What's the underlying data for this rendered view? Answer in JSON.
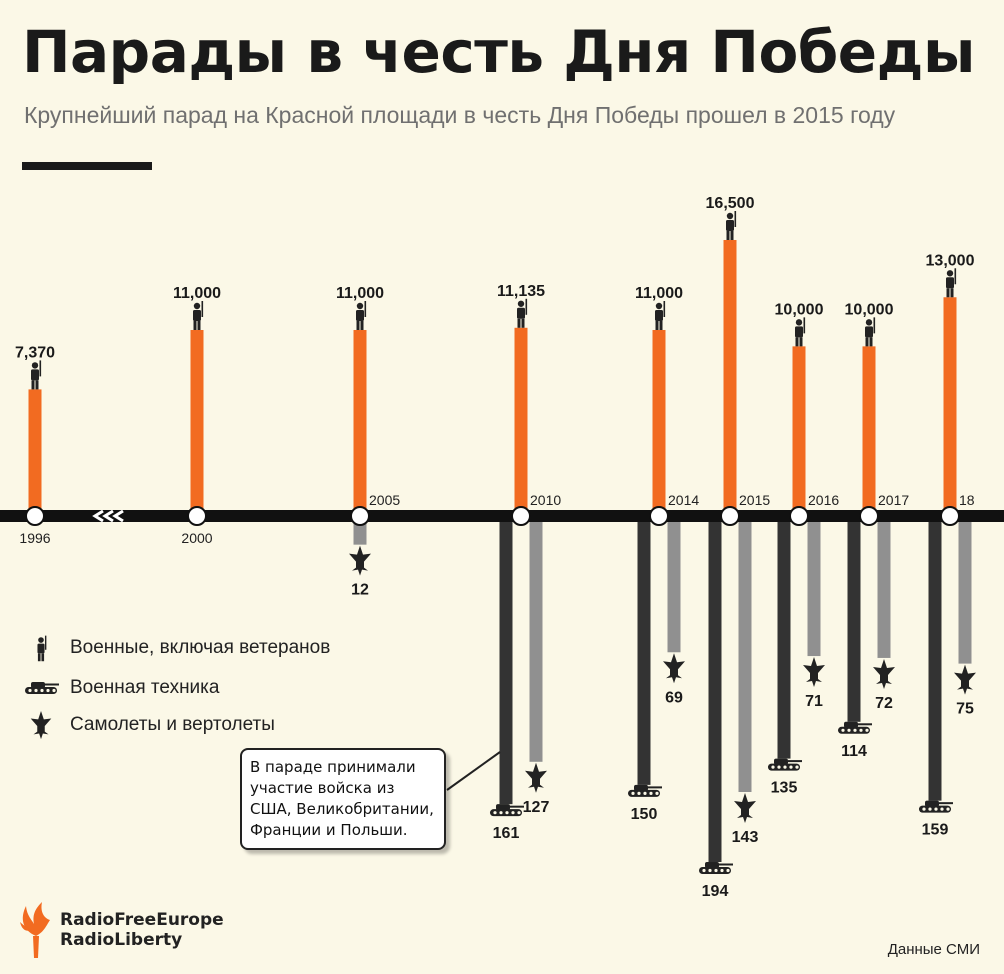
{
  "title": "Парады в честь Дня Победы",
  "subtitle": "Крупнейший парад на Красной площади в честь Дня Победы прошел в 2015 году",
  "legend": {
    "soldiers": "Военные, включая ветеранов",
    "vehicles": "Военная техника",
    "aircraft": "Самолеты и вертолеты"
  },
  "callout": {
    "lines": [
      "В параде принимали",
      "участие войска из",
      "США, Великобритании,",
      "Франции и Польши."
    ]
  },
  "logo": {
    "line1": "RadioFreeEurope",
    "line2": "RadioLiberty"
  },
  "source": "Данные СМИ",
  "colors": {
    "soldiers": "#f26b21",
    "vehicles": "#333333",
    "aircraft": "#909090",
    "axis": "#111111",
    "background": "#fbf8e7"
  },
  "chart_data": {
    "type": "bar",
    "title": "Парады в честь Дня Победы",
    "categories": [
      "1996",
      "2000",
      "2005",
      "2010",
      "2014",
      "2015",
      "2016",
      "2017",
      "18"
    ],
    "axis_break_after": "1996",
    "series": [
      {
        "name": "Военные, включая ветеранов",
        "values": [
          7370,
          11000,
          11000,
          11135,
          11000,
          16500,
          10000,
          10000,
          13000
        ],
        "labels": [
          "7,370",
          "11,000",
          "11,000",
          "11,135",
          "11,000",
          "16,500",
          "10,000",
          "10,000",
          "13,000"
        ]
      },
      {
        "name": "Военная техника",
        "values": [
          null,
          null,
          null,
          161,
          150,
          194,
          135,
          114,
          159
        ],
        "labels": [
          "",
          "",
          "",
          "161",
          "150",
          "194",
          "135",
          "114",
          "159"
        ]
      },
      {
        "name": "Самолеты и вертолеты",
        "values": [
          null,
          null,
          12,
          127,
          69,
          143,
          71,
          72,
          75
        ],
        "labels": [
          "",
          "",
          "12",
          "127",
          "69",
          "143",
          "71",
          "72",
          "75"
        ]
      }
    ]
  }
}
